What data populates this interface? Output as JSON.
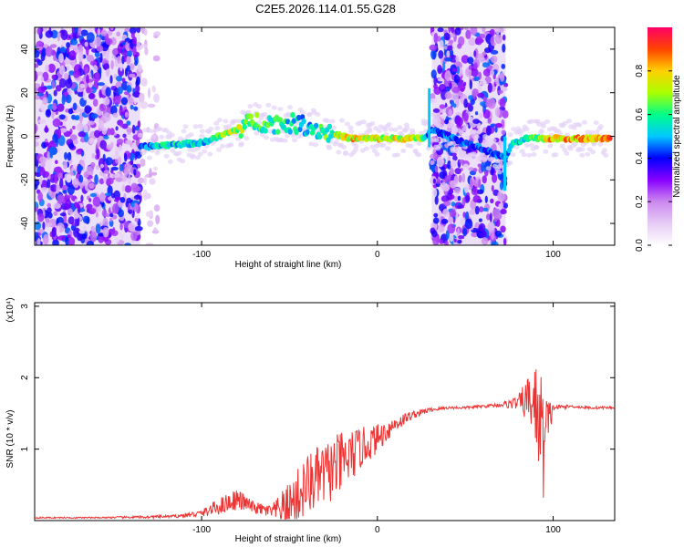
{
  "title": "C2E5.2026.114.01.55.G28",
  "chart_data": [
    {
      "type": "heatmap",
      "xlabel": "Height of straight line (km)",
      "ylabel": "Frequency (Hz)",
      "xlim": [
        -195,
        135
      ],
      "ylim": [
        -50,
        50
      ],
      "xticks": [
        -100,
        0,
        100
      ],
      "yticks": [
        -40,
        -20,
        0,
        20,
        40
      ],
      "xtick_labels": [
        "-100",
        "0",
        "100"
      ],
      "ytick_labels": [
        "-40",
        "-20",
        "0",
        "20",
        "40"
      ],
      "colorbar": {
        "label": "Normalized spectral amplitude",
        "range": [
          0,
          1
        ],
        "ticks": [
          0,
          0.2,
          0.4,
          0.6,
          0.8
        ],
        "tick_labels": [
          "0.0",
          "0.2",
          "0.4",
          "0.6",
          "0.8"
        ],
        "colors": [
          "#ffffff",
          "#e6ccf5",
          "#cc88ee",
          "#8800ff",
          "#0000ff",
          "#00c8ff",
          "#00ff88",
          "#aaff00",
          "#ffd000",
          "#ff4400",
          "#ff0066"
        ]
      },
      "noise_regions": [
        {
          "x": [
            -195,
            -135
          ],
          "level": 0.45
        },
        {
          "x": [
            -135,
            -125
          ],
          "level": 0.12
        },
        {
          "x": [
            31,
            73
          ],
          "level": 0.45
        }
      ],
      "ridge": {
        "x": [
          -135,
          -120,
          -100,
          -90,
          -80,
          -70,
          -60,
          -50,
          -40,
          -30,
          -20,
          -15,
          0,
          25,
          28,
          31,
          73,
          76,
          85,
          100,
          130
        ],
        "frequency": [
          -5,
          -4,
          -3,
          0,
          3,
          7,
          6,
          6,
          5,
          2,
          0,
          -1,
          -1,
          -1,
          0,
          3,
          -10,
          -4,
          -1,
          -1,
          -1
        ],
        "amplitude": [
          0.5,
          0.65,
          0.6,
          0.75,
          0.85,
          0.7,
          0.7,
          0.65,
          0.6,
          0.7,
          0.8,
          0.9,
          0.85,
          0.85,
          0.6,
          0.5,
          0.5,
          0.6,
          0.7,
          0.95,
          0.95
        ]
      }
    },
    {
      "type": "line",
      "xlabel": "Height of straight line (km)",
      "ylabel": "SNR (10 * v/v)",
      "y_multiplier": "(x10⁴)",
      "xlim": [
        -195,
        135
      ],
      "ylim": [
        0,
        3.05
      ],
      "xticks": [
        -100,
        0,
        100
      ],
      "yticks": [
        1,
        2,
        3
      ],
      "xtick_labels": [
        "-100",
        "0",
        "100"
      ],
      "ytick_labels": [
        "1",
        "2",
        "3"
      ],
      "color": "#ee3333",
      "series": [
        {
          "x": [
            -195,
            -160,
            -130,
            -115,
            -100,
            -90,
            -80,
            -70,
            -60,
            -50,
            -40,
            -30,
            -20,
            -10,
            0,
            10,
            20,
            30,
            40,
            50,
            60,
            70,
            80,
            86,
            90,
            95,
            98,
            100,
            110,
            120,
            135
          ],
          "y": [
            0.04,
            0.04,
            0.05,
            0.06,
            0.1,
            0.2,
            0.3,
            0.18,
            0.12,
            0.2,
            0.5,
            0.65,
            0.8,
            1.0,
            1.15,
            1.35,
            1.48,
            1.55,
            1.58,
            1.58,
            1.6,
            1.62,
            1.65,
            1.7,
            1.6,
            1.1,
            1.4,
            1.58,
            1.6,
            1.58,
            1.58
          ],
          "noise": [
            0.01,
            0.01,
            0.02,
            0.02,
            0.05,
            0.12,
            0.15,
            0.08,
            0.1,
            0.35,
            0.45,
            0.45,
            0.45,
            0.3,
            0.2,
            0.12,
            0.06,
            0.03,
            0.02,
            0.02,
            0.02,
            0.03,
            0.1,
            0.35,
            0.6,
            0.9,
            0.3,
            0.04,
            0.02,
            0.02,
            0.02
          ]
        }
      ]
    }
  ]
}
